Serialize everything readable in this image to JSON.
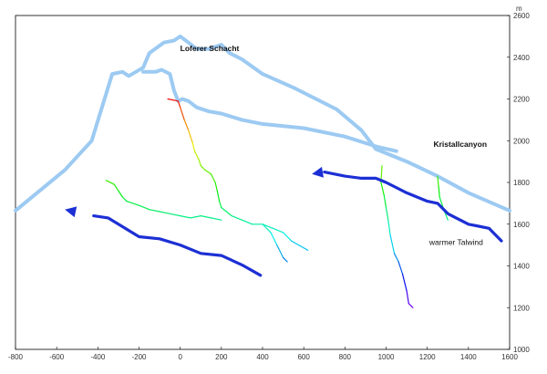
{
  "chart_data": {
    "type": "line",
    "title": "",
    "xlabel": "",
    "ylabel": "m",
    "xlim": [
      -800,
      1600
    ],
    "ylim": [
      1000,
      2600
    ],
    "x_ticks": [
      "-800",
      "-600",
      "-400",
      "-200",
      "0",
      "200",
      "400",
      "600",
      "800",
      "1000",
      "1200",
      "1400",
      "1600"
    ],
    "y_ticks": [
      "1000",
      "1200",
      "1400",
      "1600",
      "1800",
      "2000",
      "2200",
      "2400",
      "2600"
    ],
    "y_unit": "m",
    "colors": {
      "profile": "#9ccaf2",
      "wind": "#1c2fd4"
    },
    "surface_profiles": [
      {
        "name": "outer-profile",
        "x": [
          -800,
          -560,
          -430,
          -330,
          -280,
          -250,
          -180,
          -150,
          -80,
          -30,
          0,
          40,
          80,
          140,
          200,
          240,
          300,
          400,
          560,
          760,
          880,
          950,
          1100,
          1250,
          1400,
          1600
        ],
        "y": [
          1665,
          1860,
          2000,
          2320,
          2330,
          2310,
          2350,
          2420,
          2470,
          2480,
          2500,
          2470,
          2440,
          2440,
          2460,
          2420,
          2390,
          2320,
          2250,
          2150,
          2050,
          1960,
          1900,
          1830,
          1750,
          1665
        ]
      },
      {
        "name": "inner-profile",
        "x": [
          -180,
          -120,
          -90,
          -50,
          -30,
          -10,
          10,
          40,
          80,
          140,
          200,
          300,
          400,
          600,
          800,
          960,
          1050
        ],
        "y": [
          2330,
          2330,
          2340,
          2320,
          2240,
          2190,
          2200,
          2190,
          2160,
          2140,
          2130,
          2100,
          2080,
          2060,
          2020,
          1970,
          1950
        ]
      }
    ],
    "cave_traces": [
      {
        "name": "main-upper",
        "x": [
          -60,
          -10,
          0,
          20,
          40,
          60,
          70,
          90,
          100,
          120,
          150
        ],
        "y": [
          2200,
          2190,
          2160,
          2100,
          2050,
          1990,
          1950,
          1910,
          1880,
          1860,
          1840
        ]
      },
      {
        "name": "main-lower",
        "x": [
          150,
          170,
          180,
          190,
          200,
          250,
          300,
          350,
          400,
          450,
          500,
          540,
          620
        ],
        "y": [
          1840,
          1800,
          1760,
          1710,
          1680,
          1640,
          1620,
          1600,
          1600,
          1580,
          1560,
          1520,
          1475
        ]
      },
      {
        "name": "west-branch",
        "x": [
          -360,
          -320,
          -300,
          -280,
          -260,
          -200,
          -150,
          -100,
          -50,
          0,
          50,
          100,
          150,
          200
        ],
        "y": [
          1810,
          1790,
          1760,
          1730,
          1710,
          1690,
          1670,
          1660,
          1650,
          1640,
          1630,
          1640,
          1630,
          1620
        ]
      },
      {
        "name": "south-branch",
        "x": [
          400,
          440,
          470,
          500,
          520
        ],
        "y": [
          1600,
          1560,
          1500,
          1440,
          1420
        ]
      },
      {
        "name": "east-shaft",
        "x": [
          980,
          975,
          990,
          1000,
          1010,
          1020,
          1040,
          1060,
          1080,
          1100,
          1110,
          1130
        ],
        "y": [
          1880,
          1800,
          1740,
          1680,
          1620,
          1550,
          1460,
          1420,
          1360,
          1280,
          1220,
          1200
        ]
      },
      {
        "name": "east-side",
        "x": [
          1250,
          1255,
          1260,
          1280,
          1300
        ],
        "y": [
          1830,
          1780,
          1730,
          1670,
          1620
        ]
      }
    ],
    "wind_arrows": [
      {
        "name": "west-wind-arrow",
        "x": [
          390,
          300,
          200,
          100,
          0,
          -100,
          -200,
          -300,
          -350,
          -420,
          -560
        ],
        "y": [
          1355,
          1405,
          1450,
          1460,
          1500,
          1530,
          1540,
          1600,
          1630,
          1640,
          1670
        ]
      },
      {
        "name": "east-wind-arrow",
        "x": [
          1560,
          1500,
          1450,
          1400,
          1340,
          1300,
          1250,
          1200,
          1100,
          1000,
          950,
          880,
          800,
          750,
          700,
          640
        ],
        "y": [
          1520,
          1580,
          1590,
          1600,
          1630,
          1650,
          1700,
          1710,
          1750,
          1800,
          1820,
          1820,
          1830,
          1840,
          1850,
          1840
        ]
      }
    ],
    "annotations": [
      {
        "name": "loferer-schacht",
        "text": "Loferer Schacht",
        "x": 0,
        "y": 2430
      },
      {
        "name": "kristallcanyon",
        "text": "Kristallcanyon",
        "x": 1230,
        "y": 1970
      },
      {
        "name": "warmer-talwind",
        "text": "warmer Talwind",
        "x": 1210,
        "y": 1500
      }
    ]
  }
}
